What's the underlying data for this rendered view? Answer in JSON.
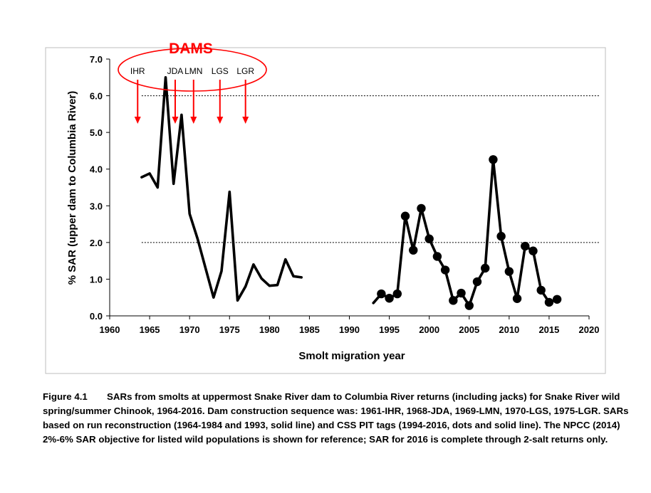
{
  "chart_data": {
    "type": "line",
    "title": "",
    "xlabel": "Smolt migration year",
    "ylabel": "% SAR (upper dam to Columbia River)",
    "xlim": [
      1960,
      2020
    ],
    "ylim": [
      0,
      7
    ],
    "x_ticks": [
      "1960",
      "1965",
      "1970",
      "1975",
      "1980",
      "1985",
      "1990",
      "1995",
      "2000",
      "2005",
      "2010",
      "2015",
      "2020"
    ],
    "y_ticks": [
      "0.0",
      "1.0",
      "2.0",
      "3.0",
      "4.0",
      "5.0",
      "6.0",
      "7.0"
    ],
    "grid": false,
    "series": [
      {
        "style": "line",
        "color": "#000000",
        "x": [
          1964,
          1965,
          1966,
          1967,
          1968,
          1969,
          1970,
          1971,
          1972,
          1973,
          1974,
          1975,
          1976,
          1977,
          1978,
          1979,
          1980,
          1981,
          1982,
          1983,
          1984
        ],
        "y": [
          3.78,
          3.88,
          3.5,
          6.5,
          3.6,
          5.48,
          2.78,
          2.1,
          1.3,
          0.5,
          1.22,
          3.38,
          0.42,
          0.8,
          1.4,
          1.02,
          0.82,
          0.84,
          1.54,
          1.08,
          1.05
        ]
      },
      {
        "style": "line+markers",
        "color": "#000000",
        "x": [
          1993,
          1994,
          1995,
          1996,
          1997,
          1998,
          1999,
          2000,
          2001,
          2002,
          2003,
          2004,
          2005,
          2006,
          2007,
          2008,
          2009,
          2010,
          2011,
          2012,
          2013,
          2014,
          2015,
          2016
        ],
        "y": [
          0.35,
          0.6,
          0.48,
          0.6,
          2.72,
          1.79,
          2.93,
          2.1,
          1.62,
          1.25,
          0.42,
          0.62,
          0.28,
          0.93,
          1.3,
          4.26,
          2.17,
          1.21,
          0.47,
          1.9,
          1.77,
          0.7,
          0.37,
          0.45
        ],
        "markers_from": 1994
      }
    ],
    "reference_lines": [
      {
        "y": 2.0,
        "x_start": 1964,
        "x_end": 2016,
        "style": "dotted"
      },
      {
        "y": 6.0,
        "x_start": 1964,
        "x_end": 2016,
        "style": "dotted"
      }
    ],
    "annotations": {
      "dams_title": "DAMS",
      "dam_color": "#ff0000",
      "dams": [
        {
          "label": "IHR",
          "year": 1963.5
        },
        {
          "label": "JDA",
          "year": 1968.2
        },
        {
          "label": "LMN",
          "year": 1970.5
        },
        {
          "label": "LGS",
          "year": 1973.8
        },
        {
          "label": "LGR",
          "year": 1977.0
        }
      ]
    }
  },
  "caption": {
    "figure_number": "Figure 4.1",
    "text": "SARs from smolts at uppermost Snake River dam to Columbia River returns (including jacks) for Snake River wild spring/summer Chinook, 1964-2016. Dam construction sequence was: 1961-IHR, 1968-JDA, 1969-LMN, 1970-LGS, 1975-LGR. SARs based on run reconstruction (1964-1984 and 1993, solid line) and CSS PIT tags (1994-2016, dots and solid line). The NPCC (2014) 2%-6% SAR objective for listed wild populations is shown for reference; SAR for 2016 is complete through 2-salt returns only."
  }
}
